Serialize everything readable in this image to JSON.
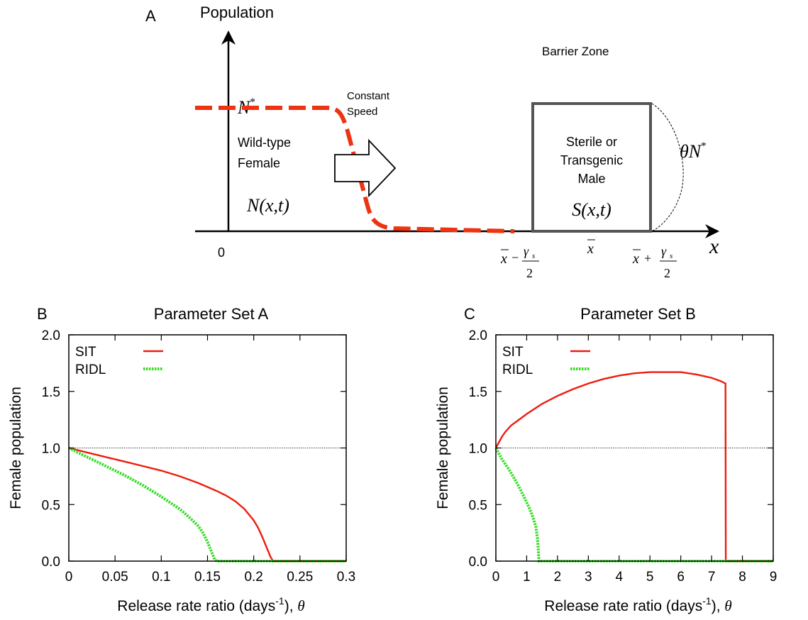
{
  "colors": {
    "sit": "#ee1c0e",
    "ridl": "#33dd22",
    "wave": "#ee3311",
    "box": "#555555",
    "axis": "#000000"
  },
  "schematic": {
    "panel_letter": "A",
    "y_axis_label": "Population",
    "n_star_base": "N",
    "n_star_sup": "*",
    "constant_speed_line1": "Constant",
    "constant_speed_line2": "Speed",
    "wild_type_line1": "Wild-type",
    "wild_type_line2": "Female",
    "n_xt": "N(x,t)",
    "origin": "0",
    "barrier_zone": "Barrier Zone",
    "sterile_line1": "Sterile or",
    "sterile_line2": "Transgenic",
    "sterile_line3": "Male",
    "s_xt": "S(x,t)",
    "theta_n_base": "θN",
    "theta_n_sup": "*",
    "x_axis_label": "x",
    "xbar": "x",
    "xbar_minus_prefix": "x",
    "xbar_minus_op": "−",
    "xbar_plus_prefix": "x",
    "xbar_plus_op": "+",
    "gamma_num": "γ",
    "gamma_sub": "s",
    "gamma_den": "2"
  },
  "chart_data": [
    {
      "type": "line",
      "panel_letter": "B",
      "title": "Parameter Set A",
      "xlabel_main": "Release rate ratio (days",
      "xlabel_sup": "-1",
      "xlabel_tail": "),",
      "xlabel_symbol": "θ",
      "ylabel": "Female population",
      "xlim": [
        0,
        0.3
      ],
      "ylim": [
        0,
        2.0
      ],
      "xticks": [
        "0",
        "0.05",
        "0.1",
        "0.15",
        "0.2",
        "0.25",
        "0.3"
      ],
      "xtick_values": [
        0,
        0.05,
        0.1,
        0.15,
        0.2,
        0.25,
        0.3
      ],
      "yticks": [
        "0.0",
        "0.5",
        "1.0",
        "1.5",
        "2.0"
      ],
      "ytick_values": [
        0,
        0.5,
        1.0,
        1.5,
        2.0
      ],
      "reference_line_y": 1.0,
      "legend_position": "top-left",
      "series": [
        {
          "name": "SIT",
          "style": "solid",
          "x": [
            0,
            0.02,
            0.04,
            0.06,
            0.08,
            0.1,
            0.12,
            0.14,
            0.16,
            0.17,
            0.18,
            0.19,
            0.2,
            0.205,
            0.21,
            0.215,
            0.218,
            0.221,
            0.223,
            0.3
          ],
          "y": [
            1.0,
            0.96,
            0.92,
            0.88,
            0.84,
            0.8,
            0.75,
            0.69,
            0.62,
            0.58,
            0.53,
            0.46,
            0.36,
            0.29,
            0.2,
            0.1,
            0.04,
            0.0,
            0.0,
            0.0
          ]
        },
        {
          "name": "RIDL",
          "style": "dashed",
          "x": [
            0,
            0.01,
            0.02,
            0.03,
            0.04,
            0.06,
            0.08,
            0.1,
            0.12,
            0.13,
            0.14,
            0.145,
            0.15,
            0.153,
            0.156,
            0.158,
            0.16,
            0.3
          ],
          "y": [
            1.0,
            0.96,
            0.92,
            0.88,
            0.84,
            0.76,
            0.67,
            0.57,
            0.46,
            0.39,
            0.31,
            0.25,
            0.17,
            0.11,
            0.05,
            0.01,
            0.0,
            0.0
          ]
        }
      ]
    },
    {
      "type": "line",
      "panel_letter": "C",
      "title": "Parameter Set B",
      "xlabel_main": "Release rate ratio (days",
      "xlabel_sup": "-1",
      "xlabel_tail": "),",
      "xlabel_symbol": "θ",
      "ylabel": "Female population",
      "xlim": [
        0,
        9
      ],
      "ylim": [
        0,
        2.0
      ],
      "xticks": [
        "0",
        "1",
        "2",
        "3",
        "4",
        "5",
        "6",
        "7",
        "8",
        "9"
      ],
      "xtick_values": [
        0,
        1,
        2,
        3,
        4,
        5,
        6,
        7,
        8,
        9
      ],
      "yticks": [
        "0.0",
        "0.5",
        "1.0",
        "1.5",
        "2.0"
      ],
      "ytick_values": [
        0,
        0.5,
        1.0,
        1.5,
        2.0
      ],
      "reference_line_y": 1.0,
      "legend_position": "top-left",
      "series": [
        {
          "name": "SIT",
          "style": "solid",
          "x": [
            0,
            0.1,
            0.2,
            0.3,
            0.5,
            0.75,
            1.0,
            1.5,
            2.0,
            2.5,
            3.0,
            3.5,
            4.0,
            4.5,
            5.0,
            5.5,
            6.0,
            6.5,
            7.0,
            7.3,
            7.45,
            7.46,
            7.47,
            9.0
          ],
          "y": [
            1.0,
            1.05,
            1.1,
            1.14,
            1.2,
            1.25,
            1.3,
            1.39,
            1.46,
            1.52,
            1.57,
            1.61,
            1.64,
            1.66,
            1.67,
            1.67,
            1.67,
            1.65,
            1.62,
            1.59,
            1.57,
            0.0,
            0.0,
            0.0
          ]
        },
        {
          "name": "RIDL",
          "style": "dashed",
          "x": [
            0,
            0.1,
            0.2,
            0.4,
            0.6,
            0.8,
            1.0,
            1.1,
            1.2,
            1.3,
            1.35,
            1.38,
            1.4,
            9.0
          ],
          "y": [
            1.0,
            0.95,
            0.9,
            0.82,
            0.73,
            0.63,
            0.52,
            0.46,
            0.39,
            0.3,
            0.2,
            0.08,
            0.0,
            0.0
          ]
        }
      ]
    }
  ]
}
